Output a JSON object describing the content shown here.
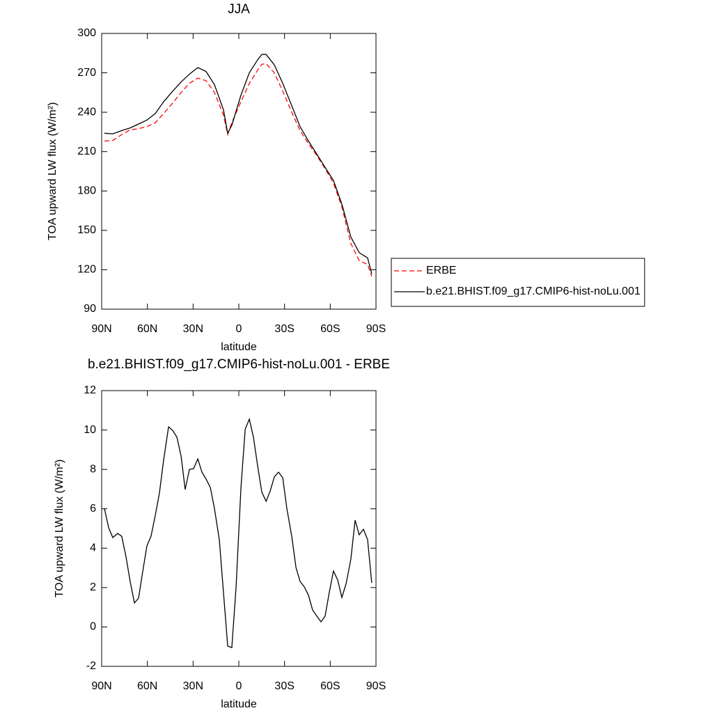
{
  "chart_data": [
    {
      "type": "line",
      "title": "JJA",
      "xlabel": "latitude",
      "ylabel": "TOA upward LW flux (W/m²)",
      "x": [
        88.2,
        82.7,
        76.8,
        71.3,
        65.8,
        60.3,
        54.8,
        49.3,
        43.4,
        37.9,
        32.4,
        26.9,
        21.5,
        16.0,
        10.1,
        7.3,
        4.6,
        -1.4,
        -6.9,
        -12.4,
        -15.1,
        -17.9,
        -23.3,
        -28.8,
        -34.7,
        -40.2,
        -45.7,
        -51.2,
        -56.6,
        -62.1,
        -67.6,
        -73.5,
        -79.0,
        -84.5,
        -87.2
      ],
      "series": [
        {
          "name": "ERBE",
          "color": "#ff0000",
          "line_style": "dashed",
          "values": [
            218,
            218.5,
            223,
            226.5,
            227.5,
            229,
            232,
            239,
            247,
            255,
            262,
            266,
            264,
            255,
            238,
            223,
            232,
            248,
            262,
            272,
            276.5,
            277,
            270,
            256,
            240,
            226,
            216,
            207,
            197,
            186,
            168,
            140,
            127,
            124,
            115
          ]
        },
        {
          "name": "b.e21.BHIST.f09_g17.CMIP6-hist-noLu.001",
          "color": "#000000",
          "line_style": "solid",
          "values": [
            224,
            223.5,
            226,
            228,
            231,
            234,
            239,
            248,
            256,
            263,
            269,
            274,
            271,
            261,
            242,
            224,
            230,
            253,
            270,
            280,
            284,
            284,
            276,
            262,
            245,
            229,
            218,
            208,
            198,
            188,
            170,
            145,
            133,
            129,
            117
          ]
        }
      ],
      "xlim": [
        90,
        -90
      ],
      "xticks": [
        {
          "value": 90,
          "label": "90N"
        },
        {
          "value": 60,
          "label": "60N"
        },
        {
          "value": 30,
          "label": "30N"
        },
        0,
        {
          "value": -30,
          "label": "30S"
        },
        {
          "value": -60,
          "label": "60S"
        },
        {
          "value": -90,
          "label": "90S"
        }
      ],
      "ylim": [
        90,
        300
      ],
      "yticks": [
        90,
        120,
        150,
        180,
        210,
        240,
        270,
        300
      ],
      "legend": "right"
    },
    {
      "type": "line",
      "title": "b.e21.BHIST.f09_g17.CMIP6-hist-noLu.001 - ERBE",
      "xlabel": "latitude",
      "ylabel": "TOA upward LW flux (W/m²)",
      "x": [
        88.2,
        85.4,
        82.7,
        79.5,
        76.8,
        74.0,
        71.3,
        68.5,
        65.8,
        63.0,
        60.3,
        57.6,
        54.8,
        52.1,
        49.3,
        46.1,
        43.4,
        40.6,
        37.9,
        35.2,
        32.4,
        29.7,
        26.9,
        24.2,
        21.5,
        18.7,
        16.0,
        12.8,
        10.1,
        7.3,
        4.6,
        1.8,
        -1.4,
        -4.2,
        -6.9,
        -9.6,
        -12.4,
        -15.1,
        -17.9,
        -20.6,
        -23.3,
        -26.0,
        -28.8,
        -31.5,
        -34.7,
        -37.5,
        -40.2,
        -43.0,
        -45.7,
        -48.4,
        -51.2,
        -53.9,
        -56.6,
        -59.4,
        -62.1,
        -64.9,
        -67.6,
        -70.4,
        -73.5,
        -76.3,
        -79.0,
        -81.8,
        -84.5,
        -87.2
      ],
      "values": [
        6.02,
        5.03,
        4.54,
        4.75,
        4.6,
        3.55,
        2.31,
        1.22,
        1.46,
        2.84,
        4.12,
        4.61,
        5.67,
        6.8,
        8.5,
        10.16,
        9.98,
        9.63,
        8.68,
        6.98,
        8.0,
        8.04,
        8.53,
        7.86,
        7.51,
        7.08,
        6.02,
        4.43,
        1.78,
        -0.97,
        -1.05,
        2.03,
        7.08,
        10.05,
        10.55,
        9.63,
        8.15,
        6.84,
        6.38,
        6.91,
        7.62,
        7.86,
        7.58,
        6.02,
        4.61,
        3.02,
        2.31,
        2.03,
        1.61,
        0.86,
        0.55,
        0.26,
        0.55,
        1.78,
        2.84,
        2.38,
        1.5,
        2.2,
        3.44,
        5.42,
        4.68,
        4.96,
        4.43,
        2.24
      ],
      "color": "#000000",
      "xlim": [
        90,
        -90
      ],
      "xticks": [
        {
          "value": 90,
          "label": "90N"
        },
        {
          "value": 60,
          "label": "60N"
        },
        {
          "value": 30,
          "label": "30N"
        },
        0,
        {
          "value": -30,
          "label": "30S"
        },
        {
          "value": -60,
          "label": "60S"
        },
        {
          "value": -90,
          "label": "90S"
        }
      ],
      "ylim": [
        -2,
        12
      ],
      "yticks": [
        -2,
        0,
        2,
        4,
        6,
        8,
        10,
        12
      ]
    }
  ]
}
